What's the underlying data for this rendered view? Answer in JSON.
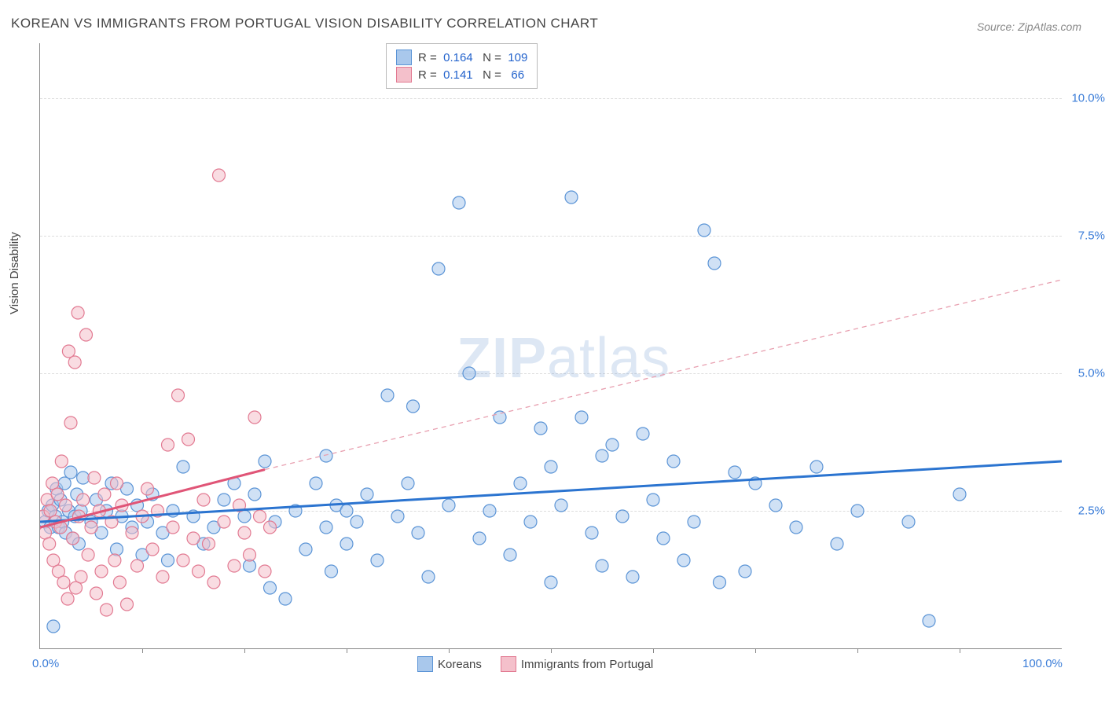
{
  "title": "KOREAN VS IMMIGRANTS FROM PORTUGAL VISION DISABILITY CORRELATION CHART",
  "source": "Source: ZipAtlas.com",
  "ylabel": "Vision Disability",
  "watermark_bold": "ZIP",
  "watermark_light": "atlas",
  "chart": {
    "type": "scatter",
    "xlim": [
      0,
      100
    ],
    "ylim": [
      0,
      11
    ],
    "background_color": "#ffffff",
    "grid_color": "#dddddd",
    "yticks": [
      {
        "v": 2.5,
        "label": "2.5%"
      },
      {
        "v": 5.0,
        "label": "5.0%"
      },
      {
        "v": 7.5,
        "label": "7.5%"
      },
      {
        "v": 10.0,
        "label": "10.0%"
      }
    ],
    "xaxis_labels": [
      {
        "v": 0,
        "label": "0.0%"
      },
      {
        "v": 100,
        "label": "100.0%"
      }
    ],
    "xtick_marks": [
      10,
      20,
      30,
      40,
      50,
      60,
      70,
      80,
      90
    ],
    "marker_radius": 8,
    "marker_opacity": 0.55,
    "series": [
      {
        "name": "Koreans",
        "fill": "#a9c8ec",
        "stroke": "#5b94d6",
        "trend": {
          "x1": 0,
          "y1": 2.3,
          "x2": 100,
          "y2": 3.4,
          "color": "#2b74d0",
          "width": 3,
          "dash": "none"
        },
        "legend_R": "0.164",
        "legend_N": "109",
        "points": [
          [
            0.5,
            2.3
          ],
          [
            0.8,
            2.5
          ],
          [
            1,
            2.2
          ],
          [
            1.2,
            2.6
          ],
          [
            1.3,
            0.4
          ],
          [
            1.5,
            2.4
          ],
          [
            1.6,
            2.9
          ],
          [
            1.8,
            2.2
          ],
          [
            2,
            2.7
          ],
          [
            2.2,
            2.3
          ],
          [
            2.4,
            3.0
          ],
          [
            2.5,
            2.1
          ],
          [
            2.8,
            2.5
          ],
          [
            3,
            3.2
          ],
          [
            3.2,
            2.0
          ],
          [
            3.4,
            2.4
          ],
          [
            3.6,
            2.8
          ],
          [
            3.8,
            1.9
          ],
          [
            4,
            2.5
          ],
          [
            4.2,
            3.1
          ],
          [
            5,
            2.3
          ],
          [
            5.5,
            2.7
          ],
          [
            6,
            2.1
          ],
          [
            6.5,
            2.5
          ],
          [
            7,
            3.0
          ],
          [
            7.5,
            1.8
          ],
          [
            8,
            2.4
          ],
          [
            8.5,
            2.9
          ],
          [
            9,
            2.2
          ],
          [
            9.5,
            2.6
          ],
          [
            10,
            1.7
          ],
          [
            10.5,
            2.3
          ],
          [
            11,
            2.8
          ],
          [
            12,
            2.1
          ],
          [
            12.5,
            1.6
          ],
          [
            13,
            2.5
          ],
          [
            14,
            3.3
          ],
          [
            15,
            2.4
          ],
          [
            16,
            1.9
          ],
          [
            17,
            2.2
          ],
          [
            18,
            2.7
          ],
          [
            19,
            3.0
          ],
          [
            20,
            2.4
          ],
          [
            20.5,
            1.5
          ],
          [
            21,
            2.8
          ],
          [
            22,
            3.4
          ],
          [
            22.5,
            1.1
          ],
          [
            23,
            2.3
          ],
          [
            24,
            0.9
          ],
          [
            25,
            2.5
          ],
          [
            26,
            1.8
          ],
          [
            27,
            3.0
          ],
          [
            28,
            2.2
          ],
          [
            28.5,
            1.4
          ],
          [
            29,
            2.6
          ],
          [
            30,
            1.9
          ],
          [
            31,
            2.3
          ],
          [
            32,
            2.8
          ],
          [
            33,
            1.6
          ],
          [
            34,
            4.6
          ],
          [
            35,
            2.4
          ],
          [
            36,
            3.0
          ],
          [
            36.5,
            4.4
          ],
          [
            37,
            2.1
          ],
          [
            38,
            1.3
          ],
          [
            39,
            6.9
          ],
          [
            40,
            2.6
          ],
          [
            41,
            8.1
          ],
          [
            42,
            5.0
          ],
          [
            43,
            2.0
          ],
          [
            44,
            2.5
          ],
          [
            45,
            4.2
          ],
          [
            46,
            1.7
          ],
          [
            47,
            3.0
          ],
          [
            48,
            2.3
          ],
          [
            49,
            4.0
          ],
          [
            50,
            1.2
          ],
          [
            51,
            2.6
          ],
          [
            52,
            8.2
          ],
          [
            53,
            4.2
          ],
          [
            54,
            2.1
          ],
          [
            55,
            1.5
          ],
          [
            56,
            3.7
          ],
          [
            57,
            2.4
          ],
          [
            58,
            1.3
          ],
          [
            59,
            3.9
          ],
          [
            60,
            2.7
          ],
          [
            61,
            2.0
          ],
          [
            62,
            3.4
          ],
          [
            63,
            1.6
          ],
          [
            64,
            2.3
          ],
          [
            65,
            7.6
          ],
          [
            66,
            7.0
          ],
          [
            66.5,
            1.2
          ],
          [
            68,
            3.2
          ],
          [
            69,
            1.4
          ],
          [
            70,
            3.0
          ],
          [
            72,
            2.6
          ],
          [
            74,
            2.2
          ],
          [
            76,
            3.3
          ],
          [
            78,
            1.9
          ],
          [
            80,
            2.5
          ],
          [
            85,
            2.3
          ],
          [
            90,
            2.8
          ],
          [
            87,
            0.5
          ],
          [
            50,
            3.3
          ],
          [
            28,
            3.5
          ],
          [
            30,
            2.5
          ],
          [
            55,
            3.5
          ]
        ]
      },
      {
        "name": "Immigrants from Portugal",
        "fill": "#f4c0cb",
        "stroke": "#e27a92",
        "trend": {
          "x1": 0,
          "y1": 2.2,
          "x2": 22,
          "y2": 3.25,
          "color": "#e05577",
          "width": 3,
          "dash": "none"
        },
        "trend_ext": {
          "x1": 22,
          "y1": 3.25,
          "x2": 100,
          "y2": 6.7,
          "color": "#e8a0b0",
          "width": 1.3,
          "dash": "6,5"
        },
        "legend_R": "0.141",
        "legend_N": "66",
        "points": [
          [
            0.3,
            2.4
          ],
          [
            0.5,
            2.1
          ],
          [
            0.7,
            2.7
          ],
          [
            0.9,
            1.9
          ],
          [
            1,
            2.5
          ],
          [
            1.2,
            3.0
          ],
          [
            1.3,
            1.6
          ],
          [
            1.5,
            2.3
          ],
          [
            1.7,
            2.8
          ],
          [
            1.8,
            1.4
          ],
          [
            2,
            2.2
          ],
          [
            2.1,
            3.4
          ],
          [
            2.3,
            1.2
          ],
          [
            2.5,
            2.6
          ],
          [
            2.7,
            0.9
          ],
          [
            2.8,
            5.4
          ],
          [
            3,
            4.1
          ],
          [
            3.2,
            2.0
          ],
          [
            3.4,
            5.2
          ],
          [
            3.5,
            1.1
          ],
          [
            3.7,
            6.1
          ],
          [
            3.8,
            2.4
          ],
          [
            4,
            1.3
          ],
          [
            4.2,
            2.7
          ],
          [
            4.5,
            5.7
          ],
          [
            4.7,
            1.7
          ],
          [
            5,
            2.2
          ],
          [
            5.3,
            3.1
          ],
          [
            5.5,
            1.0
          ],
          [
            5.8,
            2.5
          ],
          [
            6,
            1.4
          ],
          [
            6.3,
            2.8
          ],
          [
            6.5,
            0.7
          ],
          [
            7,
            2.3
          ],
          [
            7.3,
            1.6
          ],
          [
            7.5,
            3.0
          ],
          [
            7.8,
            1.2
          ],
          [
            8,
            2.6
          ],
          [
            8.5,
            0.8
          ],
          [
            9,
            2.1
          ],
          [
            9.5,
            1.5
          ],
          [
            10,
            2.4
          ],
          [
            10.5,
            2.9
          ],
          [
            11,
            1.8
          ],
          [
            11.5,
            2.5
          ],
          [
            12,
            1.3
          ],
          [
            12.5,
            3.7
          ],
          [
            13,
            2.2
          ],
          [
            13.5,
            4.6
          ],
          [
            14,
            1.6
          ],
          [
            14.5,
            3.8
          ],
          [
            15,
            2.0
          ],
          [
            15.5,
            1.4
          ],
          [
            16,
            2.7
          ],
          [
            16.5,
            1.9
          ],
          [
            17,
            1.2
          ],
          [
            17.5,
            8.6
          ],
          [
            18,
            2.3
          ],
          [
            19,
            1.5
          ],
          [
            19.5,
            2.6
          ],
          [
            20,
            2.1
          ],
          [
            20.5,
            1.7
          ],
          [
            21,
            4.2
          ],
          [
            21.5,
            2.4
          ],
          [
            22,
            1.4
          ],
          [
            22.5,
            2.2
          ]
        ]
      }
    ]
  },
  "bottom_legend": [
    {
      "swatch_fill": "#a9c8ec",
      "swatch_stroke": "#5b94d6",
      "label": "Koreans"
    },
    {
      "swatch_fill": "#f4c0cb",
      "swatch_stroke": "#e27a92",
      "label": "Immigrants from Portugal"
    }
  ]
}
